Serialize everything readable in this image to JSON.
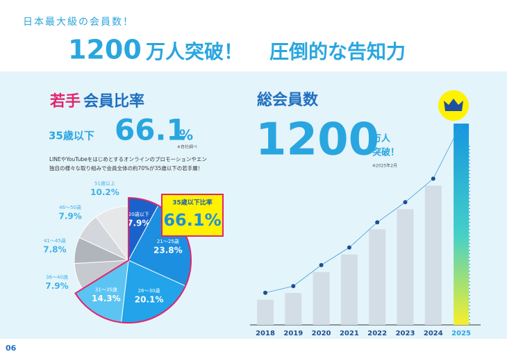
{
  "header": {
    "eyebrow": "日本最大級の会員数！",
    "title_number": "1200",
    "title_rest": "万人突破！",
    "title_tail": "圧倒的な告知力"
  },
  "left": {
    "title_a": "若手",
    "title_b": "会員比率",
    "lead_label": "35歳以下",
    "lead_value": "66.1",
    "lead_unit": "%",
    "lead_note": "※自社調べ",
    "text_1": "LINEやYouTubeをはじめとするオンラインのプロモーションやエン",
    "text_2": "独自の様々な取り組みで会員全体の約70%が35歳以下の若手層！",
    "callout_label": "35歳以下比率",
    "callout_value": "66.1%"
  },
  "right": {
    "title": "総会員数",
    "big": "1200",
    "unit_1": "万人",
    "unit_2": "突破！",
    "note": "※2025年2月"
  },
  "page": "06",
  "chart_data": [
    {
      "type": "pie",
      "categories": [
        "20歳以下",
        "21〜25歳",
        "26〜30歳",
        "31〜35歳",
        "36〜40歳",
        "41〜45歳",
        "46〜50歳",
        "51歳以上"
      ],
      "values": [
        7.9,
        23.8,
        20.1,
        14.3,
        7.9,
        7.8,
        7.9,
        10.2
      ],
      "value_labels": [
        "7.9%",
        "23.8%",
        "20.1%",
        "14.3%",
        "7.9%",
        "7.8%",
        "7.9%",
        "10.2%"
      ],
      "colors": [
        "#1a62c9",
        "#1d8fe0",
        "#22a3ea",
        "#5cc4f2",
        "#c6cacf",
        "#b0b5bb",
        "#d3d6da",
        "#e6e7e9"
      ]
    },
    {
      "type": "bar",
      "categories": [
        "2018",
        "2019",
        "2020",
        "2021",
        "2022",
        "2023",
        "2024",
        "2025"
      ],
      "values": [
        150,
        190,
        315,
        420,
        570,
        690,
        830,
        1200
      ],
      "ylim": [
        0,
        1200
      ],
      "color": "#d3dde5",
      "line_color": "#3a9fd6"
    }
  ]
}
